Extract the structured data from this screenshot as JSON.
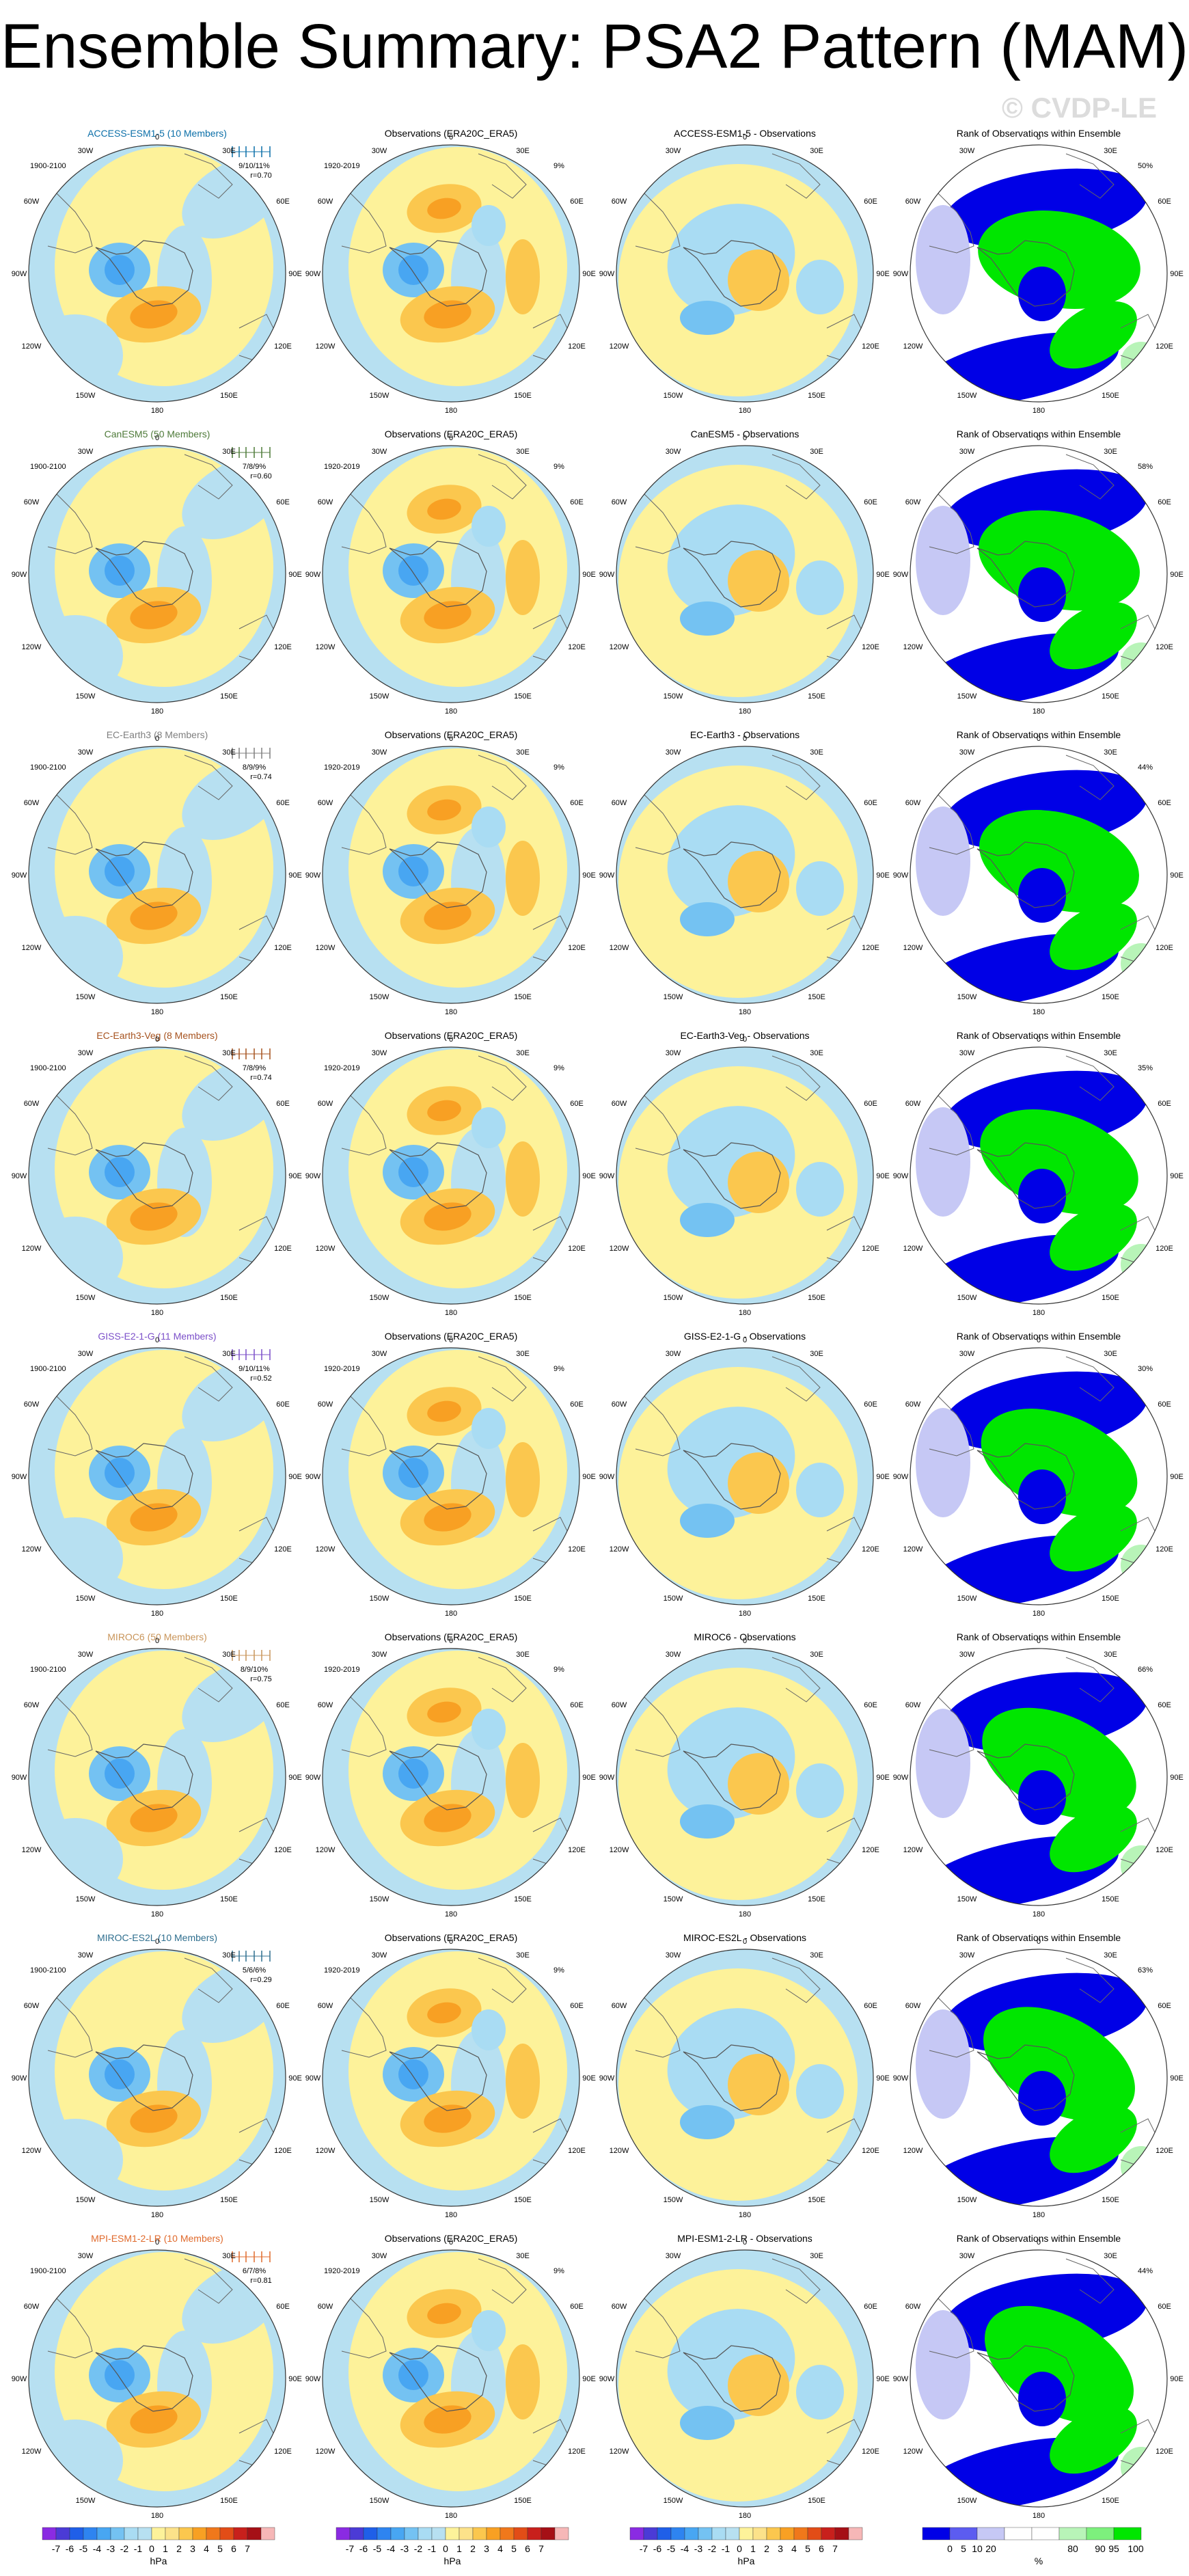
{
  "title": "Ensemble Summary: PSA2 Pattern (MAM)",
  "watermark": "© CVDP-LE",
  "colors": {
    "neg": [
      "#8a2be2",
      "#4b3bd6",
      "#1f5fe8",
      "#2e84f0",
      "#48a6f2",
      "#74c2f2",
      "#a9dcf3"
    ],
    "zero_neg": "#b7e0f1",
    "zero_pos": "#fdf29a",
    "pos": [
      "#fce28a",
      "#fbc74e",
      "#f8a023",
      "#f0781b",
      "#e24d17",
      "#c8201c",
      "#a51016",
      "#f6b7b7"
    ],
    "rank_blue": "#0000e6",
    "rank_lightblue": "#c6c8f5",
    "rank_green": "#00e600",
    "rank_lightgreen": "#b8f4b8"
  },
  "lon_labels": {
    "top": "0",
    "bottom": "180",
    "left_upper": "60W",
    "left_mid": "90W",
    "left_lower": "120W",
    "left_bottom": "150W",
    "right_upper": "60E",
    "right_mid": "90E",
    "right_lower": "120E",
    "right_bottom": "150E",
    "top_left": "30W",
    "top_right": "30E"
  },
  "rows": [
    {
      "model_title": "ACCESS-ESM1-5 (10 Members)",
      "model_color": "#0b6fa8",
      "stats": "9/10/11%",
      "corr": "r=0.70",
      "period": "1900-2100",
      "obs_title": "Observations (ERA20C_ERA5)",
      "obs_period": "1920-2019",
      "obs_pct": "9%",
      "diff_title": "ACCESS-ESM1-5 - Observations",
      "rank_title": "Rank of Observations within Ensemble",
      "rank_pct": "50%"
    },
    {
      "model_title": "CanESM5 (50 Members)",
      "model_color": "#4e7a39",
      "stats": "7/8/9%",
      "corr": "r=0.60",
      "period": "1900-2100",
      "obs_title": "Observations (ERA20C_ERA5)",
      "obs_period": "1920-2019",
      "obs_pct": "9%",
      "diff_title": "CanESM5 - Observations",
      "rank_title": "Rank of Observations within Ensemble",
      "rank_pct": "58%"
    },
    {
      "model_title": "EC-Earth3 (8 Members)",
      "model_color": "#7f7f7f",
      "stats": "8/9/9%",
      "corr": "r=0.74",
      "period": "1900-2100",
      "obs_title": "Observations (ERA20C_ERA5)",
      "obs_period": "1920-2019",
      "obs_pct": "9%",
      "diff_title": "EC-Earth3 - Observations",
      "rank_title": "Rank of Observations within Ensemble",
      "rank_pct": "44%"
    },
    {
      "model_title": "EC-Earth3-Veg (8 Members)",
      "model_color": "#a6521e",
      "stats": "7/8/9%",
      "corr": "r=0.74",
      "period": "1900-2100",
      "obs_title": "Observations (ERA20C_ERA5)",
      "obs_period": "1920-2019",
      "obs_pct": "9%",
      "diff_title": "EC-Earth3-Veg - Observations",
      "rank_title": "Rank of Observations within Ensemble",
      "rank_pct": "35%"
    },
    {
      "model_title": "GISS-E2-1-G (11 Members)",
      "model_color": "#7b4fc9",
      "stats": "9/10/11%",
      "corr": "r=0.52",
      "period": "1900-2100",
      "obs_title": "Observations (ERA20C_ERA5)",
      "obs_period": "1920-2019",
      "obs_pct": "9%",
      "diff_title": "GISS-E2-1-G - Observations",
      "rank_title": "Rank of Observations within Ensemble",
      "rank_pct": "30%"
    },
    {
      "model_title": "MIROC6 (50 Members)",
      "model_color": "#c9955a",
      "stats": "8/9/10%",
      "corr": "r=0.75",
      "period": "1900-2100",
      "obs_title": "Observations (ERA20C_ERA5)",
      "obs_period": "1920-2019",
      "obs_pct": "9%",
      "diff_title": "MIROC6 - Observations",
      "rank_title": "Rank of Observations within Ensemble",
      "rank_pct": "66%"
    },
    {
      "model_title": "MIROC-ES2L (10 Members)",
      "model_color": "#2f6f8f",
      "stats": "5/6/6%",
      "corr": "r=0.29",
      "period": "1900-2100",
      "obs_title": "Observations (ERA20C_ERA5)",
      "obs_period": "1920-2019",
      "obs_pct": "9%",
      "diff_title": "MIROC-ES2L - Observations",
      "rank_title": "Rank of Observations within Ensemble",
      "rank_pct": "63%"
    },
    {
      "model_title": "MPI-ESM1-2-LR (10 Members)",
      "model_color": "#e06a2c",
      "stats": "6/7/8%",
      "corr": "r=0.81",
      "period": "1900-2100",
      "obs_title": "Observations (ERA20C_ERA5)",
      "obs_period": "1920-2019",
      "obs_pct": "9%",
      "diff_title": "MPI-ESM1-2-LR - Observations",
      "rank_title": "Rank of Observations within Ensemble",
      "rank_pct": "44%"
    }
  ],
  "colorbars": {
    "hpa_ticks": [
      "-7",
      "-6",
      "-5",
      "-4",
      "-3",
      "-2",
      "-1",
      "0",
      "1",
      "2",
      "3",
      "4",
      "5",
      "6",
      "7"
    ],
    "hpa_unit": "hPa",
    "rank_ticks": [
      "0",
      "5",
      "10",
      "20",
      "80",
      "90",
      "95",
      "100"
    ],
    "rank_unit": "%"
  },
  "chart_data": {
    "type": "heatmap",
    "title": "Ensemble Summary: PSA2 Pattern (MAM)",
    "projection": "south polar stereographic",
    "panels_per_row": [
      "model ensemble mean",
      "observations",
      "model - observations",
      "rank of observations within ensemble"
    ],
    "models": [
      "ACCESS-ESM1-5",
      "CanESM5",
      "EC-Earth3",
      "EC-Earth3-Veg",
      "GISS-E2-1-G",
      "MIROC6",
      "MIROC-ES2L",
      "MPI-ESM1-2-LR"
    ],
    "members": [
      10,
      50,
      8,
      8,
      11,
      50,
      10,
      10
    ],
    "pattern_correlation": [
      0.7,
      0.6,
      0.74,
      0.74,
      0.52,
      0.75,
      0.29,
      0.81
    ],
    "pct_variance_explained_model": [
      "9/10/11%",
      "7/8/9%",
      "8/9/9%",
      "7/8/9%",
      "9/10/11%",
      "8/9/10%",
      "5/6/6%",
      "6/7/8%"
    ],
    "pct_variance_explained_obs": "9%",
    "rank_pct": [
      50,
      58,
      44,
      35,
      30,
      66,
      63,
      44
    ],
    "hpa_colorbar_range": [
      -7,
      7
    ],
    "rank_colorbar_ticks": [
      0,
      5,
      10,
      20,
      80,
      90,
      95,
      100
    ]
  }
}
